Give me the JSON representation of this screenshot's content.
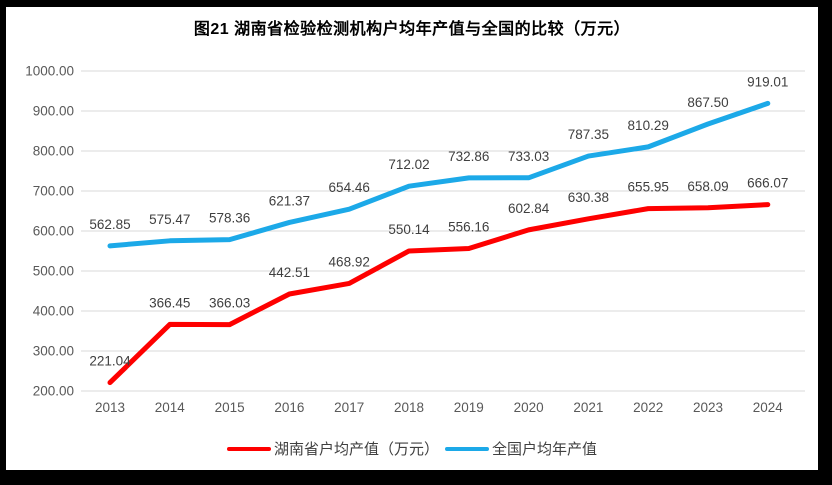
{
  "title": "图21 湖南省检验检测机构户均年产值与全国的比较（万元）",
  "chart_data": {
    "type": "line",
    "categories": [
      "2013",
      "2014",
      "2015",
      "2016",
      "2017",
      "2018",
      "2019",
      "2020",
      "2021",
      "2022",
      "2023",
      "2024"
    ],
    "series": [
      {
        "name": "湖南省户均产值（万元）",
        "color": "#FE0000",
        "values": [
          221.04,
          366.45,
          366.03,
          442.51,
          468.92,
          550.14,
          556.16,
          602.84,
          630.38,
          655.95,
          658.09,
          666.07
        ]
      },
      {
        "name": "全国户均年产值",
        "color": "#1CA9E8",
        "values": [
          562.85,
          575.47,
          578.36,
          621.37,
          654.46,
          712.02,
          732.86,
          733.03,
          787.35,
          810.29,
          867.5,
          919.01
        ]
      }
    ],
    "ylim": [
      200,
      1000
    ],
    "ytick_step": 100,
    "yticks": [
      "1000.00",
      "900.00",
      "800.00",
      "700.00",
      "600.00",
      "500.00",
      "400.00",
      "300.00",
      "200.00"
    ],
    "grid": true,
    "data_labels": true,
    "legend_position": "bottom"
  },
  "colors": {
    "gridline": "#D9D9D9",
    "axis_label": "#595959",
    "data_label": "#3F3F3F",
    "title": "#000000",
    "frame": "#000000",
    "background": "#FFFFFF"
  }
}
